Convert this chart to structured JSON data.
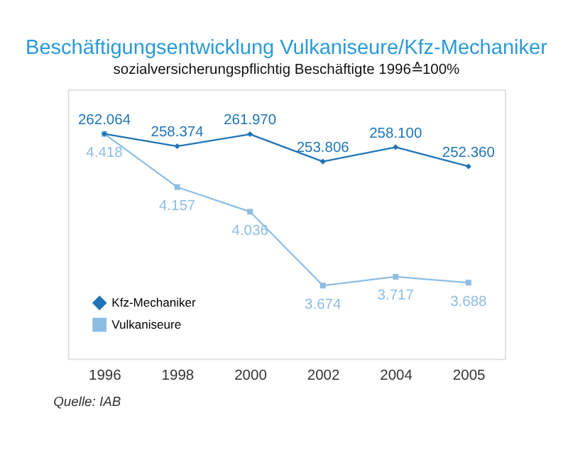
{
  "chart_data": {
    "type": "line",
    "title": "Beschäftigungsentwicklung Vulkaniseure/Kfz-Mechaniker",
    "subtitle": "sozialversicherungspflichtig Beschäftigte 1996≙100%",
    "categories": [
      "1996",
      "1998",
      "2000",
      "2002",
      "2004",
      "2005"
    ],
    "series": [
      {
        "name": "Kfz-Mechaniker",
        "color": "#1f74b8",
        "marker": "diamond",
        "values": [
          262064,
          258374,
          261970,
          253806,
          258100,
          252360
        ],
        "value_labels": [
          "262.064",
          "258.374",
          "261.970",
          "253.806",
          "258.100",
          "252.360"
        ]
      },
      {
        "name": "Vulkaniseure",
        "color": "#8dbde3",
        "marker": "square",
        "axis": "y2",
        "values": [
          4418,
          4157,
          4036,
          3674,
          3717,
          3688
        ],
        "value_labels": [
          "4.418",
          "4.157",
          "4.036",
          "3.674",
          "3.717",
          "3.688"
        ]
      }
    ],
    "ylim": [
      194931,
      275347
    ],
    "y2lim": [
      3315,
      4636
    ],
    "tick_labels": "x",
    "grid": false,
    "legend": "bottom left",
    "annotations": [
      "Quelle: IAB"
    ]
  }
}
